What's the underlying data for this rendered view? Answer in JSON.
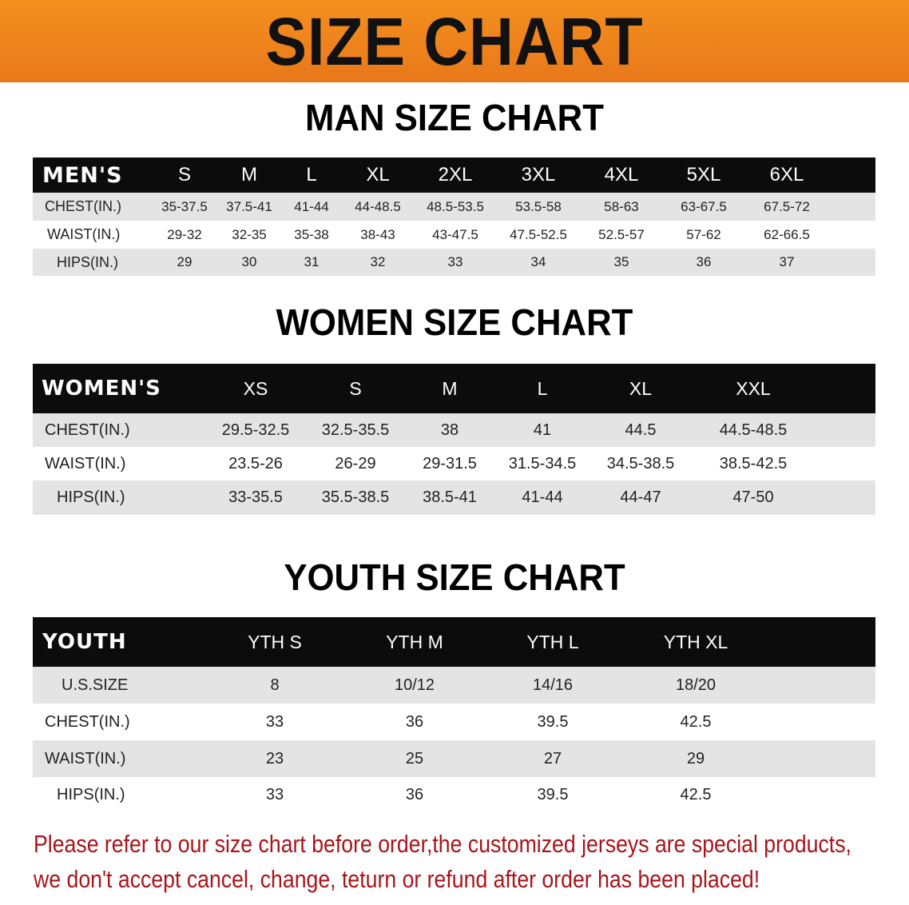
{
  "banner": {
    "title": "SIZE CHART",
    "color": "#ee851d"
  },
  "men": {
    "title": "MAN SIZE CHART",
    "header": [
      "MEN'S",
      "S",
      "M",
      "L",
      "XL",
      "2XL",
      "3XL",
      "4XL",
      "5XL",
      "6XL"
    ],
    "rows": [
      [
        "CHEST(IN.)",
        "35-37.5",
        "37.5-41",
        "41-44",
        "44-48.5",
        "48.5-53.5",
        "53.5-58",
        "58-63",
        "63-67.5",
        "67.5-72"
      ],
      [
        "WAIST(IN.)",
        "29-32",
        "32-35",
        "35-38",
        "38-43",
        "43-47.5",
        "47.5-52.5",
        "52.5-57",
        "57-62",
        "62-66.5"
      ],
      [
        "HIPS(IN.)",
        "29",
        "30",
        "31",
        "32",
        "33",
        "34",
        "35",
        "36",
        "37"
      ]
    ]
  },
  "women": {
    "title": "WOMEN SIZE CHART",
    "header": [
      "WOMEN'S",
      "XS",
      "S",
      "M",
      "L",
      "XL",
      "XXL"
    ],
    "rows": [
      [
        "CHEST(IN.)",
        "29.5-32.5",
        "32.5-35.5",
        "38",
        "41",
        "44.5",
        "44.5-48.5"
      ],
      [
        "WAIST(IN.)",
        "23.5-26",
        "26-29",
        "29-31.5",
        "31.5-34.5",
        "34.5-38.5",
        "38.5-42.5"
      ],
      [
        "HIPS(IN.)",
        "33-35.5",
        "35.5-38.5",
        "38.5-41",
        "41-44",
        "44-47",
        "47-50"
      ]
    ]
  },
  "youth": {
    "title": "YOUTH SIZE CHART",
    "header": [
      "YOUTH",
      "YTH S",
      "YTH M",
      "YTH L",
      "YTH XL"
    ],
    "rows": [
      [
        "U.S.SIZE",
        "8",
        "10/12",
        "14/16",
        "18/20"
      ],
      [
        "CHEST(IN.)",
        "33",
        "36",
        "39.5",
        "42.5"
      ],
      [
        "WAIST(IN.)",
        "23",
        "25",
        "27",
        "29"
      ],
      [
        "HIPS(IN.)",
        "33",
        "36",
        "39.5",
        "42.5"
      ]
    ]
  },
  "notice": {
    "line1": "Please refer to our size chart before order,the customized jerseys are special products,",
    "line2": "we don't accept cancel, change, teturn or refund after order has been placed!",
    "color": "#a8151a"
  }
}
